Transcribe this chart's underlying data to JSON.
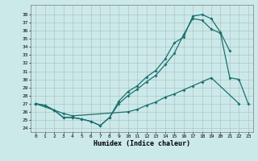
{
  "title": "",
  "xlabel": "Humidex (Indice chaleur)",
  "ylabel": "",
  "xlim": [
    -0.5,
    23.5
  ],
  "ylim": [
    23.5,
    39.2
  ],
  "xticks": [
    0,
    1,
    2,
    3,
    4,
    5,
    6,
    7,
    8,
    9,
    10,
    11,
    12,
    13,
    14,
    15,
    16,
    17,
    18,
    19,
    20,
    21,
    22,
    23
  ],
  "yticks": [
    24,
    25,
    26,
    27,
    28,
    29,
    30,
    31,
    32,
    33,
    34,
    35,
    36,
    37,
    38
  ],
  "background_color": "#cce9e9",
  "grid_color": "#aabbbb",
  "line_color": "#1a7070",
  "line1_x": [
    0,
    1,
    2,
    3,
    4,
    5,
    6,
    7,
    8,
    9,
    10,
    11,
    12,
    13,
    14,
    15,
    16,
    17,
    18,
    19,
    20,
    21
  ],
  "line1_y": [
    27.0,
    26.8,
    26.2,
    25.3,
    25.3,
    25.1,
    24.8,
    24.3,
    25.3,
    27.3,
    28.5,
    29.2,
    30.3,
    31.1,
    32.5,
    34.5,
    35.2,
    37.8,
    38.0,
    37.5,
    35.8,
    33.5
  ],
  "line2_x": [
    0,
    1,
    2,
    3,
    4,
    5,
    6,
    7,
    8,
    9,
    10,
    11,
    12,
    13,
    14,
    15,
    16,
    17,
    18,
    19,
    20,
    21,
    22,
    23
  ],
  "line2_y": [
    27.0,
    26.8,
    26.2,
    25.3,
    25.3,
    25.1,
    24.8,
    24.3,
    25.3,
    27.0,
    28.0,
    28.8,
    29.7,
    30.5,
    31.8,
    33.2,
    35.5,
    37.5,
    37.3,
    36.2,
    35.7,
    30.2,
    30.0,
    27.0
  ],
  "line3_x": [
    0,
    2,
    3,
    4,
    10,
    11,
    12,
    13,
    14,
    15,
    16,
    17,
    18,
    19,
    22
  ],
  "line3_y": [
    27.0,
    26.2,
    25.8,
    25.5,
    26.0,
    26.3,
    26.8,
    27.2,
    27.8,
    28.2,
    28.7,
    29.2,
    29.7,
    30.2,
    27.0
  ],
  "figsize": [
    3.2,
    2.0
  ],
  "dpi": 100
}
